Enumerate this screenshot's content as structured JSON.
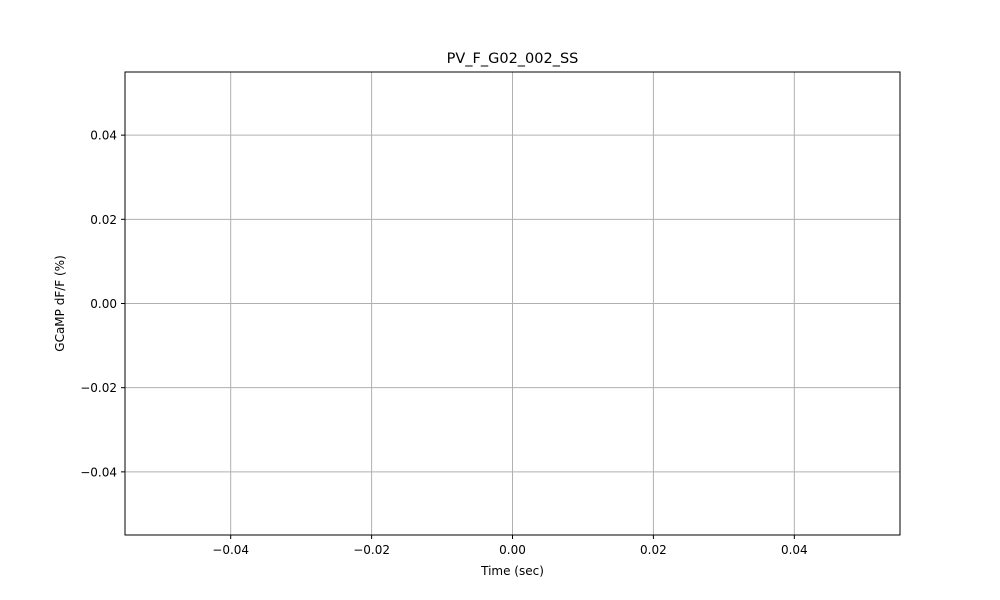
{
  "chart_data": {
    "type": "line",
    "title": "PV_F_G02_002_SS",
    "xlabel": "Time (sec)",
    "ylabel": "GCaMP dF/F (%)",
    "xlim": [
      -0.055,
      0.055
    ],
    "ylim": [
      -0.055,
      0.055
    ],
    "x_ticks": [
      -0.04,
      -0.02,
      0.0,
      0.02,
      0.04
    ],
    "x_tick_labels": [
      "−0.04",
      "−0.02",
      "0.00",
      "0.02",
      "0.04"
    ],
    "y_ticks": [
      0.04,
      0.02,
      0.0,
      -0.02,
      -0.04
    ],
    "y_tick_labels": [
      "0.04",
      "0.02",
      "0.00",
      "−0.02",
      "−0.04"
    ],
    "grid": true,
    "series": [],
    "colors": {
      "grid": "#b0b0b0",
      "frame": "#000000"
    }
  }
}
